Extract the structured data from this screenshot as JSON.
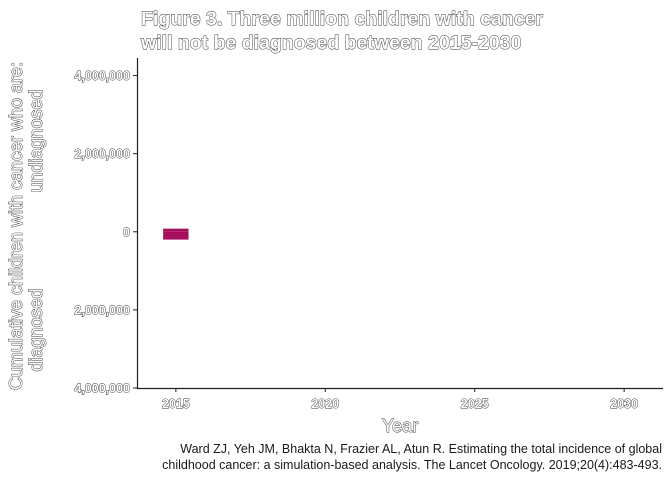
{
  "chart_data": {
    "type": "bar",
    "title_lines": [
      "Figure 3. Three million children with cancer",
      "will not be diagnosed between 2015-2030"
    ],
    "ylabel_upper_lines": [
      "Cumulative children with cancer who are:",
      "undiagnosed"
    ],
    "ylabel_lower": "diagnosed",
    "xlabel": "Year",
    "y_ticks": [
      {
        "value": 4000000,
        "label": "4,000,000"
      },
      {
        "value": 2000000,
        "label": "2,000,000"
      },
      {
        "value": 0,
        "label": "0"
      },
      {
        "value": -2000000,
        "label": "2,000,000"
      },
      {
        "value": -4000000,
        "label": "4,000,000"
      }
    ],
    "x_ticks": [
      {
        "value": 2015,
        "label": "2015"
      },
      {
        "value": 2020,
        "label": "2020"
      },
      {
        "value": 2025,
        "label": "2025"
      },
      {
        "value": 2030,
        "label": "2030"
      }
    ],
    "xlim": [
      2013.7,
      2031.3
    ],
    "ylim": [
      -4000000,
      4450000
    ],
    "series": [
      {
        "values": [
          {
            "x": 2015,
            "y": 80000
          }
        ],
        "color": "#a50f5d"
      },
      {
        "values": [
          {
            "x": 2015,
            "y": -200000
          }
        ],
        "color": "#a50f5d"
      }
    ],
    "bar_width_years": 0.85,
    "grid": false,
    "caption_lines": [
      "Ward ZJ, Yeh JM, Bhakta N, Frazier AL, Atun R. Estimating the total incidence of global",
      "childhood cancer: a simulation-based analysis. The Lancet Oncology. 2019;20(4):483-493."
    ]
  }
}
